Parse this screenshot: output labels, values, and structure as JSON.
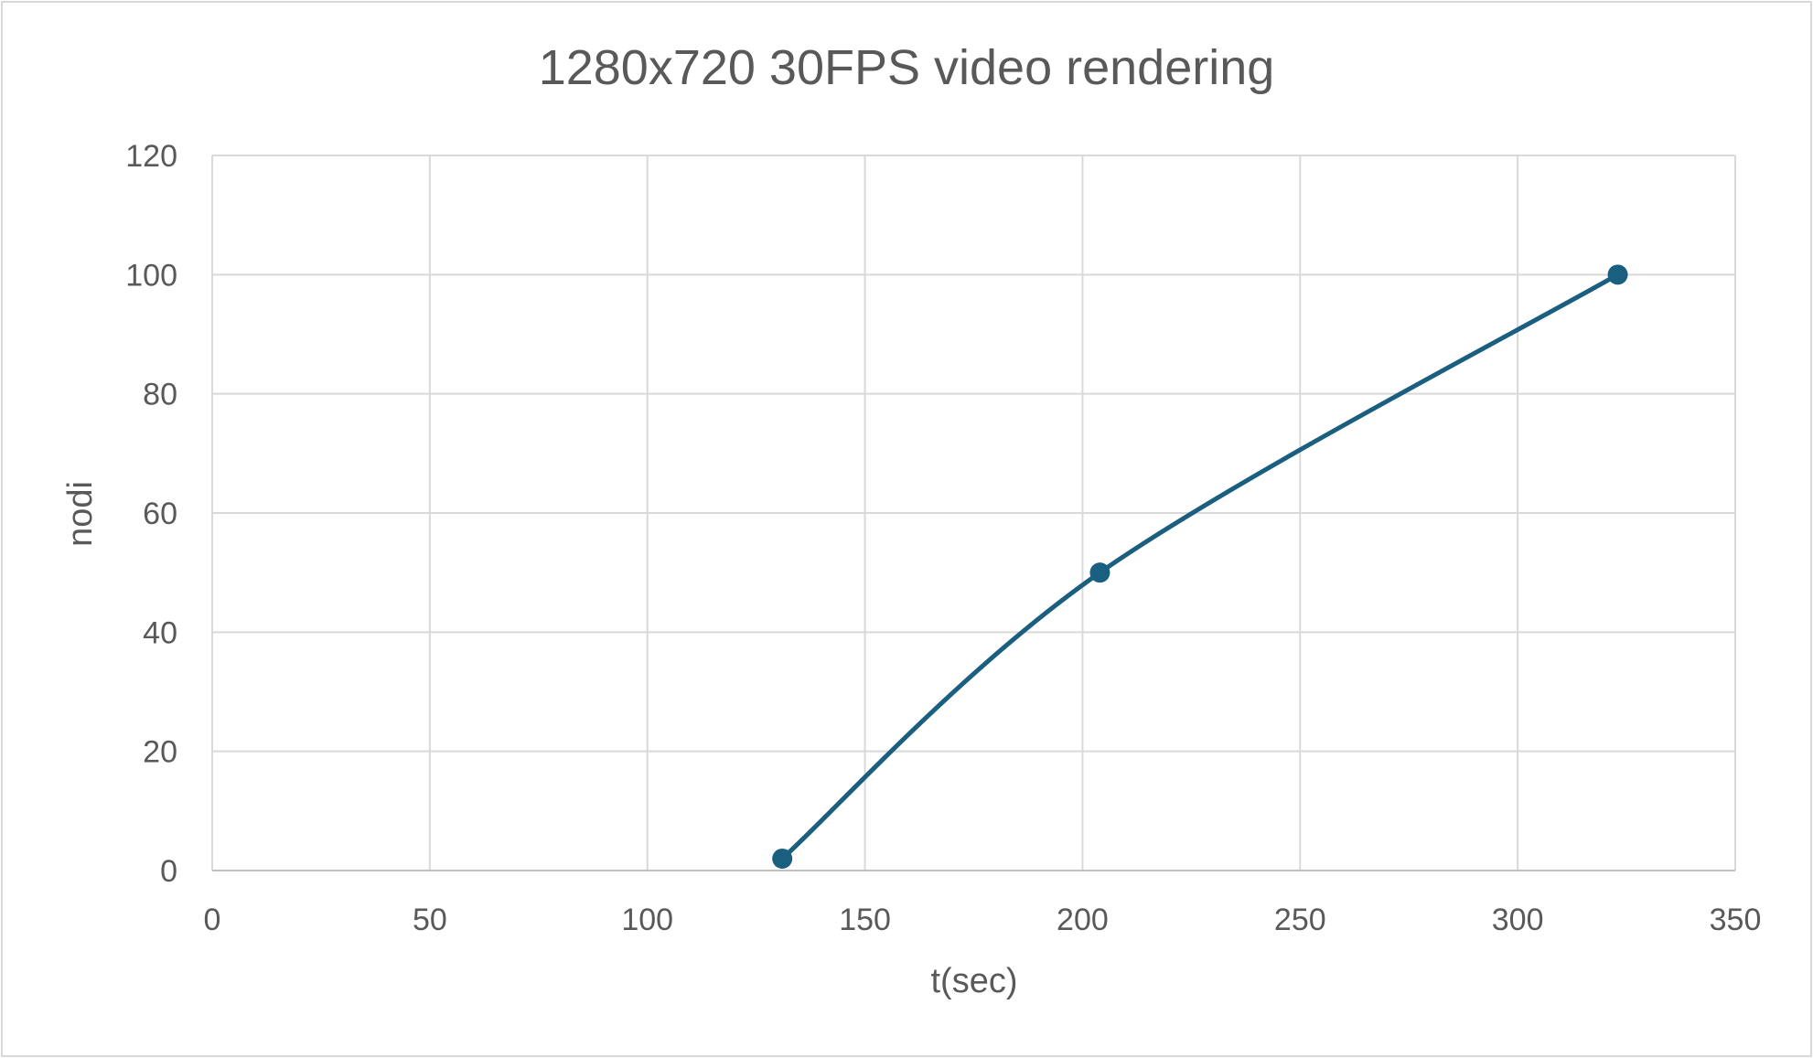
{
  "chart_data": {
    "type": "scatter",
    "title": "1280x720 30FPS video rendering",
    "xlabel": "t(sec)",
    "ylabel": "nodi",
    "xlim": [
      0,
      350
    ],
    "ylim": [
      0,
      120
    ],
    "xticks": [
      0,
      50,
      100,
      150,
      200,
      250,
      300,
      350
    ],
    "yticks": [
      0,
      20,
      40,
      60,
      80,
      100,
      120
    ],
    "grid": true,
    "legend": "none",
    "line_style": "smoothed-with-markers",
    "series": [
      {
        "color": "#1a5e80",
        "points": [
          {
            "x": 131,
            "y": 2
          },
          {
            "x": 204,
            "y": 50
          },
          {
            "x": 323,
            "y": 100
          }
        ]
      }
    ]
  }
}
